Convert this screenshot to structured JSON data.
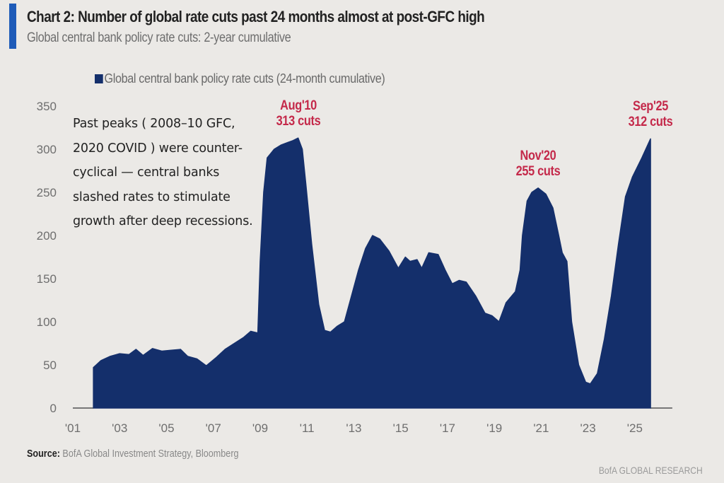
{
  "header": {
    "title": "Chart 2: Number of global rate cuts past 24 months almost at post-GFC high",
    "subtitle": "Global central bank policy rate cuts: 2-year cumulative",
    "accent_color": "#1e5bb8"
  },
  "annotation_note": "Past peaks ( 2008–10 GFC, 2020 COVID ) were counter-cyclical — central banks slashed rates to stimulate growth after deep recessions.",
  "footer": {
    "source_label": "Source:",
    "source_text": "BofA Global Investment Strategy, Bloomberg",
    "brand": "BofA GLOBAL RESEARCH"
  },
  "chart_data": {
    "type": "area",
    "title": "Chart 2: Number of global rate cuts past 24 months almost at post-GFC high",
    "subtitle": "Global central bank policy rate cuts: 2-year cumulative",
    "xlabel": "",
    "ylabel": "",
    "legend": {
      "position": "top-left",
      "entries": [
        "Global central bank policy rate cuts (24-month cumulative)"
      ]
    },
    "grid": false,
    "xlim": [
      2001.0,
      2026.6
    ],
    "ylim": [
      0,
      350
    ],
    "y_ticks": [
      0,
      50,
      100,
      150,
      200,
      250,
      300,
      350
    ],
    "x_ticks": [
      {
        "value": 2001,
        "label": "'01"
      },
      {
        "value": 2003,
        "label": "'03"
      },
      {
        "value": 2005,
        "label": "'05"
      },
      {
        "value": 2007,
        "label": "'07"
      },
      {
        "value": 2009,
        "label": "'09"
      },
      {
        "value": 2011,
        "label": "'11"
      },
      {
        "value": 2013,
        "label": "'13"
      },
      {
        "value": 2015,
        "label": "'15"
      },
      {
        "value": 2017,
        "label": "'17"
      },
      {
        "value": 2019,
        "label": "'19"
      },
      {
        "value": 2021,
        "label": "'21"
      },
      {
        "value": 2023,
        "label": "'23"
      },
      {
        "value": 2025,
        "label": "'25"
      }
    ],
    "series": [
      {
        "name": "Global central bank policy rate cuts (24-month cumulative)",
        "color": "#142f6b",
        "x": [
          2001.88,
          2002.0,
          2002.2,
          2002.6,
          2003.0,
          2003.4,
          2003.7,
          2004.0,
          2004.4,
          2004.8,
          2005.2,
          2005.6,
          2005.9,
          2006.3,
          2006.7,
          2007.1,
          2007.5,
          2007.9,
          2008.3,
          2008.6,
          2008.9,
          2009.0,
          2009.15,
          2009.3,
          2009.6,
          2009.9,
          2010.2,
          2010.4,
          2010.62,
          2010.8,
          2010.95,
          2011.2,
          2011.5,
          2011.75,
          2012.0,
          2012.3,
          2012.6,
          2012.9,
          2013.2,
          2013.5,
          2013.8,
          2014.1,
          2014.5,
          2014.9,
          2015.2,
          2015.4,
          2015.7,
          2015.9,
          2016.2,
          2016.6,
          2016.9,
          2017.2,
          2017.5,
          2017.8,
          2018.2,
          2018.6,
          2018.9,
          2019.2,
          2019.5,
          2019.9,
          2020.1,
          2020.2,
          2020.4,
          2020.6,
          2020.87,
          2021.2,
          2021.5,
          2021.75,
          2021.9,
          2022.1,
          2022.3,
          2022.6,
          2022.9,
          2023.1,
          2023.4,
          2023.7,
          2024.0,
          2024.3,
          2024.6,
          2024.9,
          2025.3,
          2025.67
        ],
        "values": [
          47,
          50,
          55,
          60,
          63,
          62,
          68,
          61,
          69,
          66,
          67,
          68,
          60,
          57,
          49,
          58,
          68,
          75,
          82,
          89,
          87,
          170,
          250,
          290,
          300,
          305,
          308,
          310,
          313,
          300,
          260,
          190,
          120,
          90,
          88,
          95,
          100,
          130,
          160,
          185,
          200,
          196,
          182,
          162,
          175,
          170,
          172,
          162,
          180,
          178,
          160,
          144,
          148,
          146,
          130,
          110,
          107,
          100,
          122,
          135,
          160,
          200,
          240,
          250,
          255,
          248,
          232,
          200,
          180,
          170,
          100,
          50,
          30,
          28,
          40,
          80,
          130,
          190,
          245,
          268,
          290,
          312
        ]
      }
    ],
    "annotations": [
      {
        "label_line1": "Aug'10",
        "label_line2": "313 cuts",
        "x": 2010.62,
        "value": 313
      },
      {
        "label_line1": "Nov'20",
        "label_line2": "255 cuts",
        "x": 2020.87,
        "value": 255
      },
      {
        "label_line1": "Sep'25",
        "label_line2": "312 cuts",
        "x": 2025.67,
        "value": 312
      }
    ],
    "colors": {
      "area": "#142f6b",
      "annotation": "#c4294a",
      "axis": "#777777",
      "tick_label": "#6e6e6e"
    }
  }
}
